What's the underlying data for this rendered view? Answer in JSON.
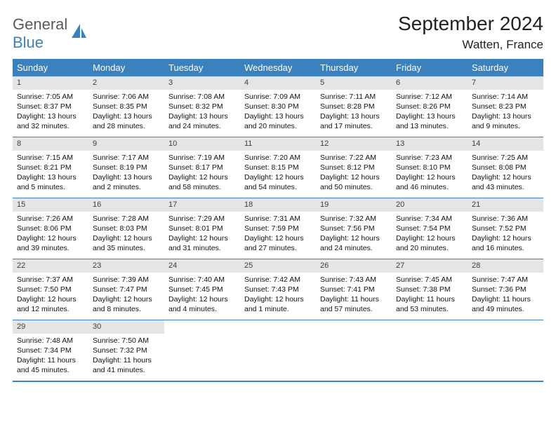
{
  "logo": {
    "word1": "General",
    "word2": "Blue"
  },
  "title": "September 2024",
  "location": "Watten, France",
  "colors": {
    "accent": "#3a81bd",
    "daynum_bg": "#e5e5e5",
    "text": "#111111",
    "logo_gray": "#595959"
  },
  "weekdays": [
    "Sunday",
    "Monday",
    "Tuesday",
    "Wednesday",
    "Thursday",
    "Friday",
    "Saturday"
  ],
  "weeks": [
    [
      {
        "n": "1",
        "sr": "Sunrise: 7:05 AM",
        "ss": "Sunset: 8:37 PM",
        "d1": "Daylight: 13 hours",
        "d2": "and 32 minutes."
      },
      {
        "n": "2",
        "sr": "Sunrise: 7:06 AM",
        "ss": "Sunset: 8:35 PM",
        "d1": "Daylight: 13 hours",
        "d2": "and 28 minutes."
      },
      {
        "n": "3",
        "sr": "Sunrise: 7:08 AM",
        "ss": "Sunset: 8:32 PM",
        "d1": "Daylight: 13 hours",
        "d2": "and 24 minutes."
      },
      {
        "n": "4",
        "sr": "Sunrise: 7:09 AM",
        "ss": "Sunset: 8:30 PM",
        "d1": "Daylight: 13 hours",
        "d2": "and 20 minutes."
      },
      {
        "n": "5",
        "sr": "Sunrise: 7:11 AM",
        "ss": "Sunset: 8:28 PM",
        "d1": "Daylight: 13 hours",
        "d2": "and 17 minutes."
      },
      {
        "n": "6",
        "sr": "Sunrise: 7:12 AM",
        "ss": "Sunset: 8:26 PM",
        "d1": "Daylight: 13 hours",
        "d2": "and 13 minutes."
      },
      {
        "n": "7",
        "sr": "Sunrise: 7:14 AM",
        "ss": "Sunset: 8:23 PM",
        "d1": "Daylight: 13 hours",
        "d2": "and 9 minutes."
      }
    ],
    [
      {
        "n": "8",
        "sr": "Sunrise: 7:15 AM",
        "ss": "Sunset: 8:21 PM",
        "d1": "Daylight: 13 hours",
        "d2": "and 5 minutes."
      },
      {
        "n": "9",
        "sr": "Sunrise: 7:17 AM",
        "ss": "Sunset: 8:19 PM",
        "d1": "Daylight: 13 hours",
        "d2": "and 2 minutes."
      },
      {
        "n": "10",
        "sr": "Sunrise: 7:19 AM",
        "ss": "Sunset: 8:17 PM",
        "d1": "Daylight: 12 hours",
        "d2": "and 58 minutes."
      },
      {
        "n": "11",
        "sr": "Sunrise: 7:20 AM",
        "ss": "Sunset: 8:15 PM",
        "d1": "Daylight: 12 hours",
        "d2": "and 54 minutes."
      },
      {
        "n": "12",
        "sr": "Sunrise: 7:22 AM",
        "ss": "Sunset: 8:12 PM",
        "d1": "Daylight: 12 hours",
        "d2": "and 50 minutes."
      },
      {
        "n": "13",
        "sr": "Sunrise: 7:23 AM",
        "ss": "Sunset: 8:10 PM",
        "d1": "Daylight: 12 hours",
        "d2": "and 46 minutes."
      },
      {
        "n": "14",
        "sr": "Sunrise: 7:25 AM",
        "ss": "Sunset: 8:08 PM",
        "d1": "Daylight: 12 hours",
        "d2": "and 43 minutes."
      }
    ],
    [
      {
        "n": "15",
        "sr": "Sunrise: 7:26 AM",
        "ss": "Sunset: 8:06 PM",
        "d1": "Daylight: 12 hours",
        "d2": "and 39 minutes."
      },
      {
        "n": "16",
        "sr": "Sunrise: 7:28 AM",
        "ss": "Sunset: 8:03 PM",
        "d1": "Daylight: 12 hours",
        "d2": "and 35 minutes."
      },
      {
        "n": "17",
        "sr": "Sunrise: 7:29 AM",
        "ss": "Sunset: 8:01 PM",
        "d1": "Daylight: 12 hours",
        "d2": "and 31 minutes."
      },
      {
        "n": "18",
        "sr": "Sunrise: 7:31 AM",
        "ss": "Sunset: 7:59 PM",
        "d1": "Daylight: 12 hours",
        "d2": "and 27 minutes."
      },
      {
        "n": "19",
        "sr": "Sunrise: 7:32 AM",
        "ss": "Sunset: 7:56 PM",
        "d1": "Daylight: 12 hours",
        "d2": "and 24 minutes."
      },
      {
        "n": "20",
        "sr": "Sunrise: 7:34 AM",
        "ss": "Sunset: 7:54 PM",
        "d1": "Daylight: 12 hours",
        "d2": "and 20 minutes."
      },
      {
        "n": "21",
        "sr": "Sunrise: 7:36 AM",
        "ss": "Sunset: 7:52 PM",
        "d1": "Daylight: 12 hours",
        "d2": "and 16 minutes."
      }
    ],
    [
      {
        "n": "22",
        "sr": "Sunrise: 7:37 AM",
        "ss": "Sunset: 7:50 PM",
        "d1": "Daylight: 12 hours",
        "d2": "and 12 minutes."
      },
      {
        "n": "23",
        "sr": "Sunrise: 7:39 AM",
        "ss": "Sunset: 7:47 PM",
        "d1": "Daylight: 12 hours",
        "d2": "and 8 minutes."
      },
      {
        "n": "24",
        "sr": "Sunrise: 7:40 AM",
        "ss": "Sunset: 7:45 PM",
        "d1": "Daylight: 12 hours",
        "d2": "and 4 minutes."
      },
      {
        "n": "25",
        "sr": "Sunrise: 7:42 AM",
        "ss": "Sunset: 7:43 PM",
        "d1": "Daylight: 12 hours",
        "d2": "and 1 minute."
      },
      {
        "n": "26",
        "sr": "Sunrise: 7:43 AM",
        "ss": "Sunset: 7:41 PM",
        "d1": "Daylight: 11 hours",
        "d2": "and 57 minutes."
      },
      {
        "n": "27",
        "sr": "Sunrise: 7:45 AM",
        "ss": "Sunset: 7:38 PM",
        "d1": "Daylight: 11 hours",
        "d2": "and 53 minutes."
      },
      {
        "n": "28",
        "sr": "Sunrise: 7:47 AM",
        "ss": "Sunset: 7:36 PM",
        "d1": "Daylight: 11 hours",
        "d2": "and 49 minutes."
      }
    ],
    [
      {
        "n": "29",
        "sr": "Sunrise: 7:48 AM",
        "ss": "Sunset: 7:34 PM",
        "d1": "Daylight: 11 hours",
        "d2": "and 45 minutes."
      },
      {
        "n": "30",
        "sr": "Sunrise: 7:50 AM",
        "ss": "Sunset: 7:32 PM",
        "d1": "Daylight: 11 hours",
        "d2": "and 41 minutes."
      },
      null,
      null,
      null,
      null,
      null
    ]
  ]
}
